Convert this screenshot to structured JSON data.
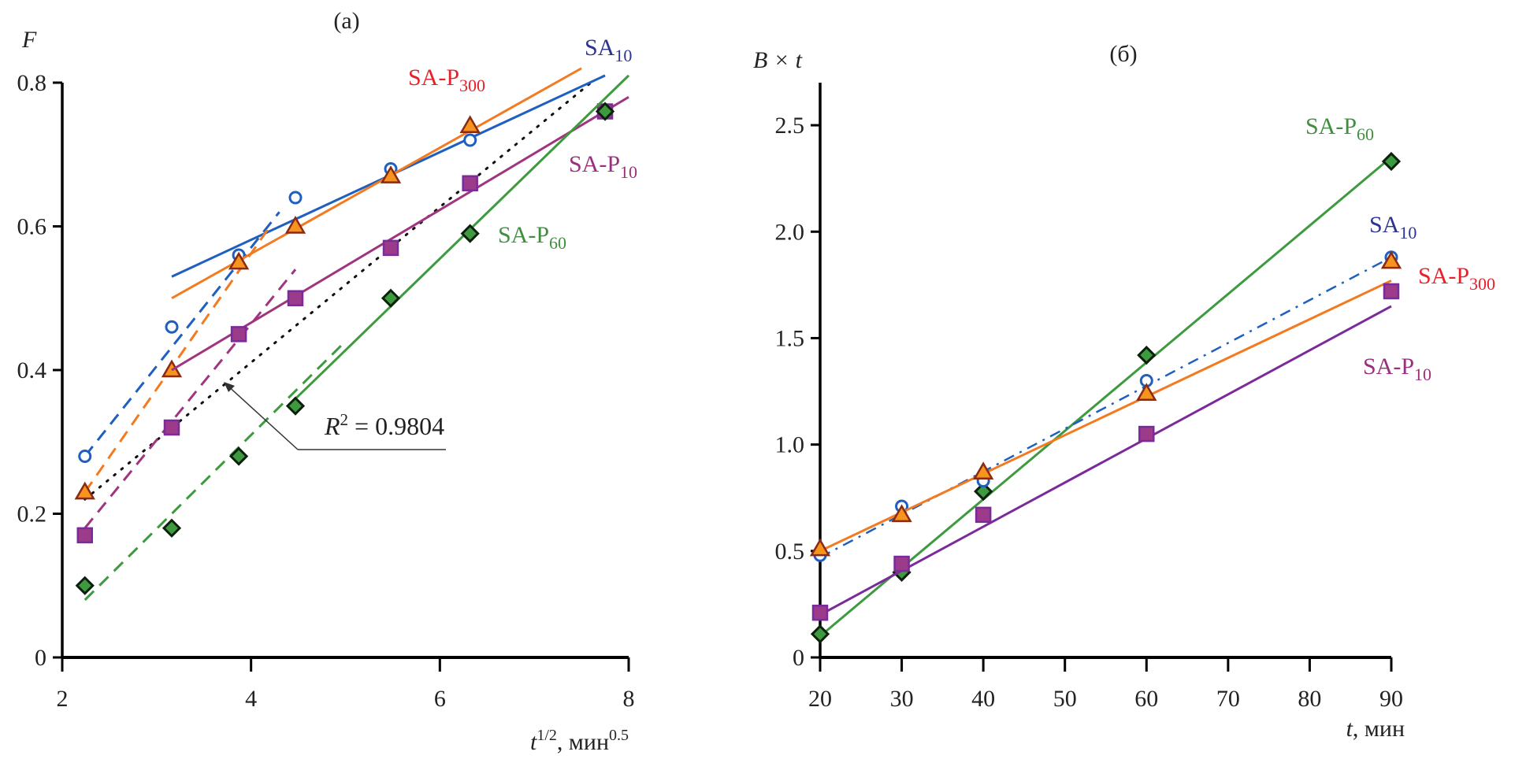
{
  "chart_data": [
    {
      "type": "line",
      "panel_title": "(a)",
      "ylabel": "F",
      "xlabel": {
        "base": "t",
        "sup": "1/2",
        "unit": ", мин",
        "unit_sup": "0.5"
      },
      "xlim": [
        2,
        8
      ],
      "ylim": [
        0,
        0.8
      ],
      "xticks": [
        2,
        4,
        6,
        8
      ],
      "yticks": [
        0,
        0.2,
        0.4,
        0.6,
        0.8
      ],
      "ytick_labels": [
        "0",
        "0.2",
        "0.4",
        "0.6",
        "0.8"
      ],
      "xtick_labels": [
        "2",
        "4",
        "6",
        "8"
      ],
      "grid": false,
      "annotation": {
        "text_base": "R",
        "text_sup": "2",
        "text_rest": " = 0.9804",
        "points_to": "dotted linear fit"
      },
      "series": [
        {
          "name": "SA10",
          "label_base": "SA",
          "label_sub": "10",
          "color": "#1f5fbf",
          "label_color": "#2b3590",
          "marker": "circle-open",
          "x": [
            2.24,
            3.16,
            3.87,
            4.47,
            5.48,
            6.32
          ],
          "y": [
            0.28,
            0.46,
            0.56,
            0.64,
            0.68,
            0.72
          ],
          "fit_early": [
            [
              2.24,
              0.28
            ],
            [
              4.3,
              0.62
            ]
          ],
          "fit_late": [
            [
              3.16,
              0.53
            ],
            [
              7.75,
              0.81
            ]
          ]
        },
        {
          "name": "SA-P300",
          "label_base": "SA-P",
          "label_sub": "300",
          "color": "#f47a20",
          "label_color": "#e8202a",
          "marker": "triangle",
          "x": [
            2.24,
            3.16,
            3.87,
            4.47,
            5.48,
            6.32
          ],
          "y": [
            0.23,
            0.4,
            0.55,
            0.6,
            0.67,
            0.74
          ],
          "fit_early": [
            [
              2.24,
              0.23
            ],
            [
              4.2,
              0.6
            ]
          ],
          "fit_late": [
            [
              3.16,
              0.5
            ],
            [
              7.5,
              0.82
            ]
          ]
        },
        {
          "name": "SA-P10",
          "label_base": "SA-P",
          "label_sub": "10",
          "color": "#a0357f",
          "label_color": "#9b2f7f",
          "marker": "square",
          "x": [
            2.24,
            3.16,
            3.87,
            4.47,
            5.48,
            6.32,
            7.75
          ],
          "y": [
            0.17,
            0.32,
            0.45,
            0.5,
            0.57,
            0.66,
            0.76
          ],
          "fit_early": [
            [
              2.24,
              0.18
            ],
            [
              4.47,
              0.54
            ]
          ],
          "fit_late": [
            [
              3.16,
              0.4
            ],
            [
              8.0,
              0.78
            ]
          ]
        },
        {
          "name": "SA-P60",
          "label_base": "SA-P",
          "label_sub": "60",
          "color": "#3e9a3e",
          "label_color": "#3e8f3e",
          "marker": "diamond",
          "x": [
            2.24,
            3.16,
            3.87,
            4.47,
            5.48,
            6.32,
            7.75
          ],
          "y": [
            0.1,
            0.18,
            0.28,
            0.35,
            0.5,
            0.59,
            0.76
          ],
          "fit_early": [
            [
              2.24,
              0.08
            ],
            [
              5.0,
              0.44
            ]
          ],
          "fit_late": [
            [
              4.47,
              0.36
            ],
            [
              8.0,
              0.81
            ]
          ]
        }
      ],
      "dotted_fit": [
        [
          2.24,
          0.22
        ],
        [
          7.6,
          0.8
        ]
      ]
    },
    {
      "type": "line",
      "panel_title": "(б)",
      "ylabel": "B × t",
      "xlabel": {
        "base": "t",
        "unit": ", мин"
      },
      "xlim": [
        20,
        90
      ],
      "ylim": [
        0,
        2.7
      ],
      "xticks": [
        20,
        30,
        40,
        50,
        60,
        70,
        80,
        90
      ],
      "xtick_labels": [
        "20",
        "30",
        "40",
        "50",
        "60",
        "70",
        "80",
        "90"
      ],
      "yticks": [
        0,
        0.5,
        1.0,
        1.5,
        2.0,
        2.5
      ],
      "ytick_labels": [
        "0",
        "0.5",
        "1.0",
        "1.5",
        "2.0",
        "2.5"
      ],
      "grid": false,
      "series": [
        {
          "name": "SA-P60",
          "label_base": "SA-P",
          "label_sub": "60",
          "color": "#3e9a3e",
          "label_color": "#3e8f3e",
          "marker": "diamond",
          "line": "solid",
          "x": [
            20,
            30,
            40,
            60,
            90
          ],
          "y": [
            0.11,
            0.4,
            0.78,
            1.42,
            2.33
          ],
          "fit": [
            [
              20,
              0.1
            ],
            [
              90,
              2.35
            ]
          ]
        },
        {
          "name": "SA10",
          "label_base": "SA",
          "label_sub": "10",
          "color": "#1f5fbf",
          "label_color": "#2b3590",
          "marker": "circle-open",
          "line": "dashdot",
          "x": [
            20,
            30,
            40,
            60,
            90
          ],
          "y": [
            0.48,
            0.71,
            0.83,
            1.3,
            1.88
          ],
          "fit": [
            [
              20,
              0.47
            ],
            [
              90,
              1.88
            ]
          ]
        },
        {
          "name": "SA-P300",
          "label_base": "SA-P",
          "label_sub": "300",
          "color": "#f47a20",
          "label_color": "#e8202a",
          "marker": "triangle",
          "line": "solid",
          "x": [
            20,
            30,
            40,
            60,
            90
          ],
          "y": [
            0.51,
            0.67,
            0.87,
            1.24,
            1.86
          ],
          "fit": [
            [
              20,
              0.5
            ],
            [
              90,
              1.77
            ]
          ]
        },
        {
          "name": "SA-P10",
          "label_base": "SA-P",
          "label_sub": "10",
          "color": "#7b2a9a",
          "label_color": "#9b2f7f",
          "marker": "square",
          "line": "solid",
          "x": [
            20,
            30,
            40,
            60,
            90
          ],
          "y": [
            0.21,
            0.44,
            0.67,
            1.05,
            1.72
          ],
          "fit": [
            [
              20,
              0.2
            ],
            [
              90,
              1.65
            ]
          ]
        }
      ]
    }
  ]
}
